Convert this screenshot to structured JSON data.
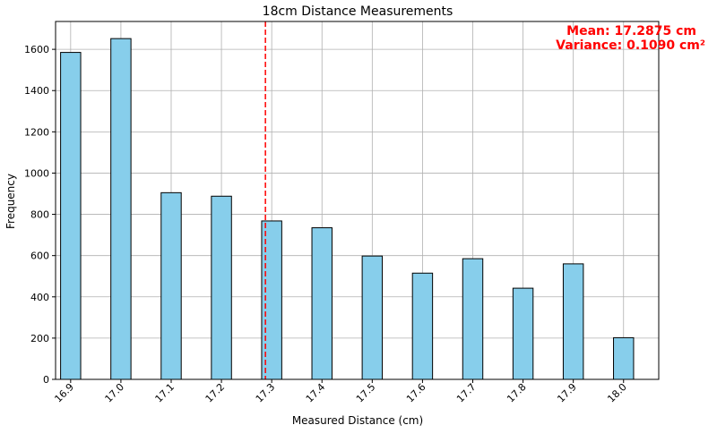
{
  "chart_data": {
    "type": "bar",
    "title": "18cm Distance Measurements",
    "xlabel": "Measured Distance (cm)",
    "ylabel": "Frequency",
    "categories": [
      "16.9",
      "17.0",
      "17.1",
      "17.2",
      "17.3",
      "17.4",
      "17.5",
      "17.6",
      "17.7",
      "17.8",
      "17.9",
      "18.0"
    ],
    "values": [
      1585,
      1652,
      905,
      888,
      768,
      735,
      598,
      515,
      585,
      442,
      560,
      202
    ],
    "yticks": [
      0,
      200,
      400,
      600,
      800,
      1000,
      1200,
      1400,
      1600
    ],
    "ylim": [
      0,
      1735
    ],
    "xlim": [
      16.87,
      18.07
    ],
    "bar_width": 0.04,
    "mean_line": 17.2875,
    "annotations": {
      "mean_text": "Mean: 17.2875 cm",
      "variance_text": "Variance: 0.1090 cm²"
    },
    "grid": true,
    "colors": {
      "bar_fill": "#87ceeb",
      "bar_edge": "#000000",
      "mean_line": "#ff0000",
      "annotation": "#ff0000",
      "grid": "#b0b0b0"
    }
  }
}
